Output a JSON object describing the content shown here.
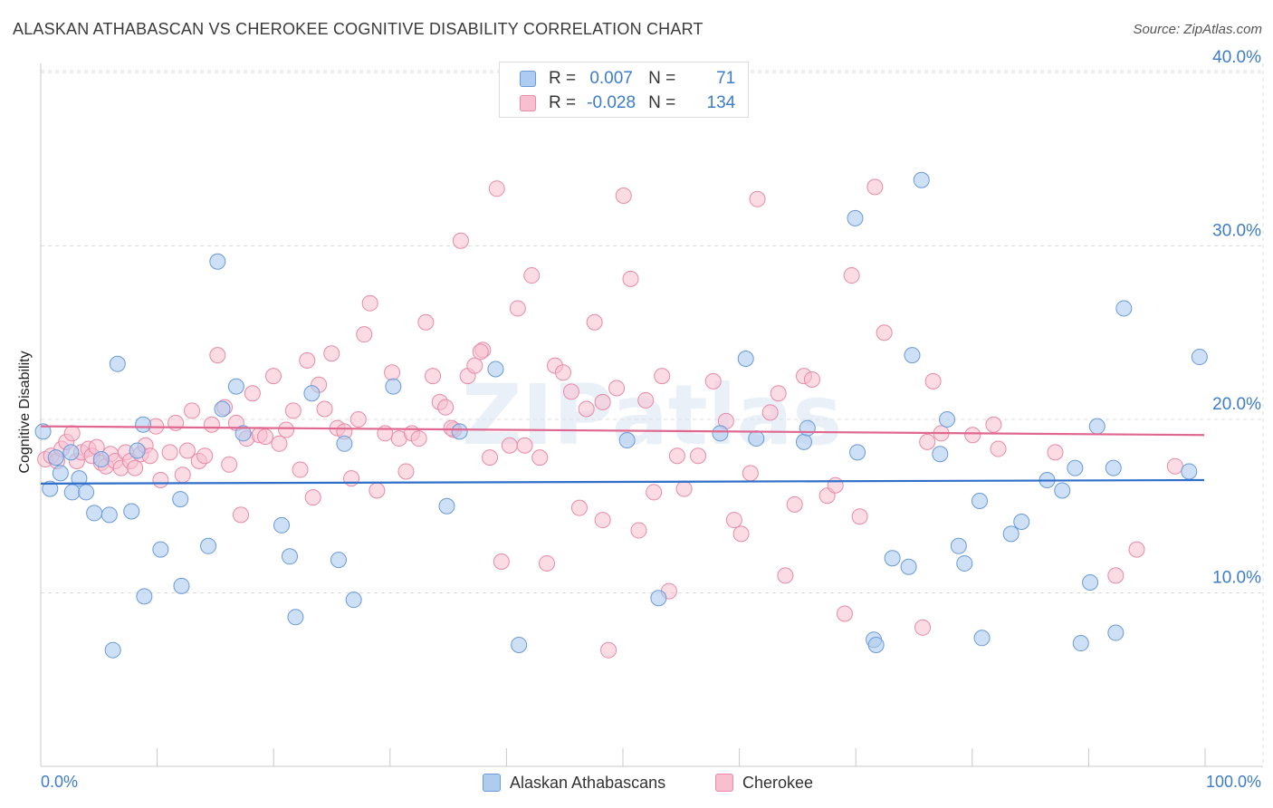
{
  "title": "ALASKAN ATHABASCAN VS CHEROKEE COGNITIVE DISABILITY CORRELATION CHART",
  "source": "Source: ZipAtlas.com",
  "watermark": "ZIPatlas",
  "legend": {
    "rows": [
      {
        "r_label": "R =",
        "r_value": "0.007",
        "n_label": "N =",
        "n_value": "71"
      },
      {
        "r_label": "R =",
        "r_value": "-0.028",
        "n_label": "N =",
        "n_value": "134"
      }
    ]
  },
  "colors": {
    "blue_fill": "#aecbf0",
    "blue_stroke": "#6a9ad8",
    "blue_line": "#2f6fca",
    "pink_fill": "#f7bfd0",
    "pink_stroke": "#e88aa8",
    "pink_line": "#e06890",
    "tick_label": "#3d7cc9",
    "grid": "#dcdcdc"
  },
  "chart_data": {
    "type": "scatter",
    "title": "ALASKAN ATHABASCAN VS CHEROKEE COGNITIVE DISABILITY CORRELATION CHART",
    "xlabel": "",
    "ylabel": "Cognitive Disability",
    "xlim": [
      0,
      100
    ],
    "ylim": [
      0,
      42
    ],
    "x_tick_labels": [
      "0.0%",
      "100.0%"
    ],
    "y_ticks": [
      10,
      20,
      30,
      40
    ],
    "y_tick_labels": [
      "10.0%",
      "20.0%",
      "30.0%",
      "40.0%"
    ],
    "grid": true,
    "legend_position": "top-center",
    "series": [
      {
        "name": "Alaskan Athabascans",
        "color": "#aecbf0",
        "trend": {
          "y_start": 16.3,
          "y_end": 16.5
        },
        "points": [
          [
            0.2,
            19.3
          ],
          [
            0.8,
            16.0
          ],
          [
            1.3,
            17.8
          ],
          [
            1.7,
            16.9
          ],
          [
            2.6,
            18.1
          ],
          [
            2.7,
            15.8
          ],
          [
            3.3,
            16.6
          ],
          [
            3.9,
            15.8
          ],
          [
            4.6,
            14.6
          ],
          [
            5.2,
            17.7
          ],
          [
            5.9,
            14.5
          ],
          [
            6.2,
            6.7
          ],
          [
            6.6,
            23.2
          ],
          [
            7.8,
            14.7
          ],
          [
            8.3,
            18.2
          ],
          [
            8.8,
            19.7
          ],
          [
            8.9,
            9.8
          ],
          [
            10.3,
            12.5
          ],
          [
            12.0,
            15.4
          ],
          [
            12.1,
            10.4
          ],
          [
            14.4,
            12.7
          ],
          [
            15.2,
            29.1
          ],
          [
            15.6,
            20.6
          ],
          [
            16.8,
            21.9
          ],
          [
            17.4,
            19.2
          ],
          [
            20.7,
            13.9
          ],
          [
            21.4,
            12.1
          ],
          [
            21.9,
            8.6
          ],
          [
            23.3,
            21.5
          ],
          [
            25.6,
            11.9
          ],
          [
            26.1,
            18.6
          ],
          [
            26.9,
            9.6
          ],
          [
            30.3,
            21.9
          ],
          [
            34.9,
            15.0
          ],
          [
            36.0,
            19.3
          ],
          [
            39.1,
            22.9
          ],
          [
            41.1,
            7.0
          ],
          [
            50.4,
            18.8
          ],
          [
            53.1,
            9.7
          ],
          [
            58.4,
            19.2
          ],
          [
            60.6,
            23.5
          ],
          [
            61.5,
            18.9
          ],
          [
            65.6,
            18.7
          ],
          [
            65.9,
            19.5
          ],
          [
            70.0,
            31.6
          ],
          [
            70.2,
            18.1
          ],
          [
            71.6,
            7.3
          ],
          [
            71.8,
            7.0
          ],
          [
            73.2,
            12.0
          ],
          [
            74.6,
            11.5
          ],
          [
            74.9,
            23.7
          ],
          [
            75.7,
            33.8
          ],
          [
            77.3,
            18.0
          ],
          [
            77.9,
            20.0
          ],
          [
            78.9,
            12.7
          ],
          [
            79.4,
            11.7
          ],
          [
            80.7,
            15.3
          ],
          [
            80.9,
            7.4
          ],
          [
            83.4,
            13.4
          ],
          [
            84.3,
            14.1
          ],
          [
            86.5,
            16.5
          ],
          [
            87.8,
            15.9
          ],
          [
            89.4,
            7.1
          ],
          [
            90.2,
            10.6
          ],
          [
            90.8,
            19.6
          ],
          [
            92.2,
            17.2
          ],
          [
            92.4,
            7.7
          ],
          [
            93.1,
            26.4
          ],
          [
            98.7,
            17.0
          ],
          [
            99.6,
            23.6
          ],
          [
            88.9,
            17.2
          ]
        ]
      },
      {
        "name": "Cherokee",
        "color": "#f7bfd0",
        "trend": {
          "y_start": 19.6,
          "y_end": 19.1
        },
        "points": [
          [
            0.4,
            17.7
          ],
          [
            0.9,
            17.9
          ],
          [
            1.4,
            17.6
          ],
          [
            1.8,
            18.3
          ],
          [
            2.2,
            18.7
          ],
          [
            2.7,
            19.2
          ],
          [
            3.1,
            17.6
          ],
          [
            3.5,
            18.1
          ],
          [
            4.1,
            18.3
          ],
          [
            4.4,
            17.9
          ],
          [
            4.8,
            18.4
          ],
          [
            5.2,
            17.5
          ],
          [
            5.6,
            17.3
          ],
          [
            6.0,
            18.0
          ],
          [
            6.4,
            17.6
          ],
          [
            6.9,
            17.2
          ],
          [
            7.3,
            18.1
          ],
          [
            7.7,
            17.6
          ],
          [
            8.1,
            17.2
          ],
          [
            8.6,
            18.0
          ],
          [
            9.0,
            18.5
          ],
          [
            9.4,
            17.9
          ],
          [
            9.9,
            19.6
          ],
          [
            10.3,
            16.5
          ],
          [
            11.1,
            18.1
          ],
          [
            11.6,
            19.8
          ],
          [
            12.2,
            16.8
          ],
          [
            12.6,
            18.2
          ],
          [
            13.0,
            20.5
          ],
          [
            13.6,
            17.6
          ],
          [
            14.1,
            17.9
          ],
          [
            14.7,
            19.7
          ],
          [
            15.2,
            23.7
          ],
          [
            15.8,
            20.7
          ],
          [
            16.2,
            17.4
          ],
          [
            16.8,
            19.8
          ],
          [
            17.2,
            14.5
          ],
          [
            17.7,
            18.9
          ],
          [
            18.2,
            21.5
          ],
          [
            18.8,
            19.1
          ],
          [
            19.3,
            19.0
          ],
          [
            20.0,
            22.5
          ],
          [
            20.5,
            18.6
          ],
          [
            21.1,
            19.4
          ],
          [
            21.7,
            20.5
          ],
          [
            22.3,
            17.1
          ],
          [
            22.9,
            23.4
          ],
          [
            23.4,
            15.5
          ],
          [
            23.9,
            22.0
          ],
          [
            24.4,
            20.6
          ],
          [
            25.0,
            23.8
          ],
          [
            25.5,
            19.5
          ],
          [
            26.1,
            19.3
          ],
          [
            26.7,
            16.6
          ],
          [
            27.3,
            20.0
          ],
          [
            27.8,
            24.9
          ],
          [
            28.3,
            26.7
          ],
          [
            28.9,
            15.9
          ],
          [
            29.6,
            19.2
          ],
          [
            30.2,
            22.7
          ],
          [
            30.8,
            18.9
          ],
          [
            31.4,
            17.0
          ],
          [
            31.9,
            19.2
          ],
          [
            32.5,
            18.9
          ],
          [
            33.1,
            25.6
          ],
          [
            33.7,
            22.5
          ],
          [
            34.3,
            21.0
          ],
          [
            34.8,
            20.7
          ],
          [
            35.5,
            19.4
          ],
          [
            36.1,
            30.3
          ],
          [
            36.7,
            22.5
          ],
          [
            37.3,
            23.1
          ],
          [
            38.0,
            24.0
          ],
          [
            38.6,
            17.8
          ],
          [
            39.2,
            33.3
          ],
          [
            39.6,
            11.8
          ],
          [
            40.3,
            18.5
          ],
          [
            41.0,
            26.4
          ],
          [
            41.6,
            18.5
          ],
          [
            42.2,
            28.3
          ],
          [
            42.9,
            17.8
          ],
          [
            43.5,
            11.7
          ],
          [
            44.2,
            23.1
          ],
          [
            44.9,
            22.7
          ],
          [
            45.6,
            21.6
          ],
          [
            46.3,
            14.9
          ],
          [
            46.9,
            20.6
          ],
          [
            47.6,
            25.6
          ],
          [
            48.3,
            14.2
          ],
          [
            48.8,
            6.7
          ],
          [
            49.5,
            21.8
          ],
          [
            50.1,
            32.9
          ],
          [
            50.7,
            28.1
          ],
          [
            51.4,
            13.6
          ],
          [
            52.0,
            21.1
          ],
          [
            52.7,
            15.8
          ],
          [
            53.4,
            22.5
          ],
          [
            54.0,
            10.1
          ],
          [
            54.7,
            17.9
          ],
          [
            55.3,
            16.0
          ],
          [
            56.5,
            17.9
          ],
          [
            57.8,
            22.2
          ],
          [
            58.9,
            19.9
          ],
          [
            59.6,
            14.2
          ],
          [
            60.2,
            13.4
          ],
          [
            61.0,
            16.9
          ],
          [
            61.6,
            32.7
          ],
          [
            62.7,
            20.4
          ],
          [
            63.4,
            21.5
          ],
          [
            64.0,
            11.0
          ],
          [
            64.8,
            15.1
          ],
          [
            65.6,
            22.5
          ],
          [
            66.3,
            22.3
          ],
          [
            67.6,
            15.6
          ],
          [
            68.3,
            16.2
          ],
          [
            69.1,
            8.8
          ],
          [
            69.7,
            28.3
          ],
          [
            70.4,
            14.4
          ],
          [
            71.7,
            33.4
          ],
          [
            72.5,
            25.0
          ],
          [
            75.8,
            8.0
          ],
          [
            76.2,
            18.7
          ],
          [
            76.7,
            22.2
          ],
          [
            77.4,
            19.2
          ],
          [
            80.1,
            19.1
          ],
          [
            81.9,
            19.7
          ],
          [
            82.3,
            18.3
          ],
          [
            87.2,
            18.1
          ],
          [
            92.4,
            11.0
          ],
          [
            94.2,
            12.5
          ],
          [
            97.5,
            17.3
          ],
          [
            35.3,
            19.5
          ],
          [
            48.3,
            21.0
          ],
          [
            37.8,
            23.9
          ]
        ]
      }
    ]
  },
  "bottom_legend": {
    "series_a": "Alaskan Athabascans",
    "series_b": "Cherokee"
  }
}
